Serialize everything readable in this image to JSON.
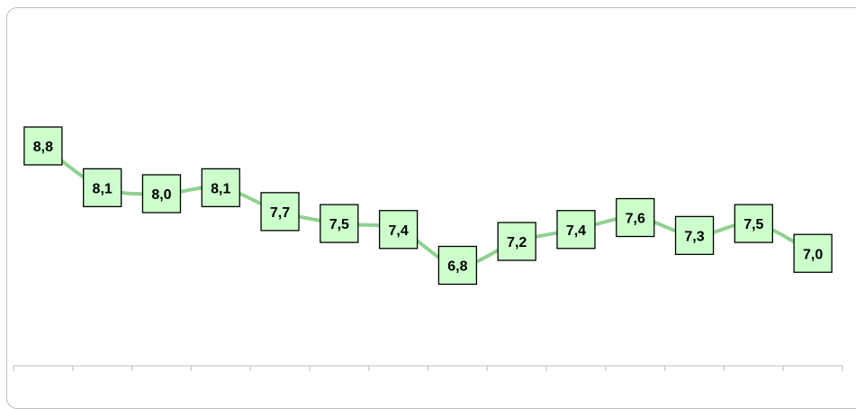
{
  "chart_data": {
    "type": "line",
    "categories": [
      "",
      "",
      "",
      "",
      "",
      "",
      "",
      "",
      "",
      "",
      "",
      "",
      "",
      ""
    ],
    "values": [
      8.8,
      8.1,
      8.0,
      8.1,
      7.7,
      7.5,
      7.4,
      6.8,
      7.2,
      7.4,
      7.6,
      7.3,
      7.5,
      7.0
    ],
    "data_labels": [
      "8,8",
      "8,1",
      "8,0",
      "8,1",
      "7,7",
      "7,5",
      "7,4",
      "6,8",
      "7,2",
      "7,4",
      "7,6",
      "7,3",
      "7,5",
      "7,0"
    ],
    "line_color": "#8fd18f",
    "label_fill": "#ccffcc",
    "axis_color": "#bfbfbf",
    "grid": false,
    "legend": "none"
  }
}
